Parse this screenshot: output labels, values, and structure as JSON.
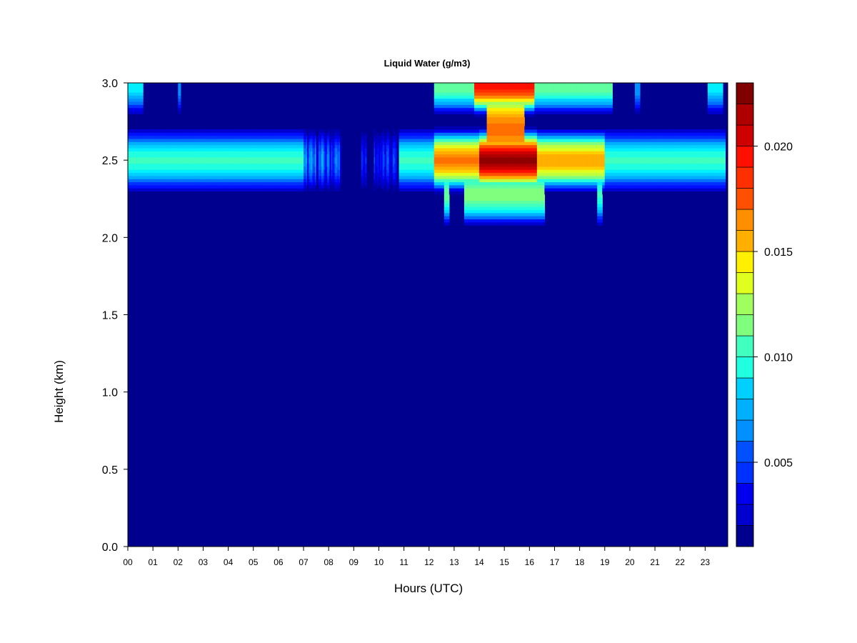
{
  "chart_data": {
    "type": "heatmap",
    "title": "Liquid Water (g/m3)",
    "xlabel": "Hours (UTC)",
    "ylabel": "Height (km)",
    "x_ticks": [
      "00",
      "01",
      "02",
      "03",
      "04",
      "05",
      "06",
      "07",
      "08",
      "09",
      "10",
      "11",
      "12",
      "13",
      "14",
      "15",
      "16",
      "17",
      "18",
      "19",
      "20",
      "21",
      "22",
      "23"
    ],
    "xlim": [
      0,
      23.9
    ],
    "y_ticks": [
      "0.0",
      "0.5",
      "1.0",
      "1.5",
      "2.0",
      "2.5",
      "3.0"
    ],
    "ylim": [
      0,
      3.0
    ],
    "colorbar": {
      "range": [
        0.001,
        0.023
      ],
      "levels": 22,
      "tick_values": [
        0.005,
        0.01,
        0.015,
        0.02
      ],
      "tick_labels": [
        "0.005",
        "0.010",
        "0.015",
        "0.020"
      ],
      "colors": [
        "#00008F",
        "#0000AF",
        "#0000CF",
        "#0000EF",
        "#0010FF",
        "#0030FF",
        "#0050FF",
        "#0070FF",
        "#0090FF",
        "#00B0FF",
        "#00D0FF",
        "#00F0FF",
        "#20FFDF",
        "#40FFBF",
        "#60FF9F",
        "#80FF7F",
        "#A0FF5F",
        "#C0FF3F",
        "#E0FF1F",
        "#FFEF00",
        "#FFCF00",
        "#FFAF00",
        "#FF8F00",
        "#FF6F00",
        "#FF4F00",
        "#FF2F00",
        "#FF0F00",
        "#EF0000",
        "#CF0000",
        "#AF0000",
        "#8F0000",
        "#800000"
      ]
    },
    "background_value": 0.001,
    "cloud_layers": [
      {
        "height_center": 2.5,
        "height_halfwidth": 0.22,
        "segments": [
          {
            "x": [
              0.0,
              7.0
            ],
            "peak": 0.01
          },
          {
            "x": [
              7.0,
              8.5
            ],
            "peak": 0.008,
            "streaky": true
          },
          {
            "x": [
              9.3,
              9.5
            ],
            "peak": 0.006,
            "streaky": true
          },
          {
            "x": [
              9.8,
              10.7
            ],
            "peak": 0.006,
            "streaky": true
          },
          {
            "x": [
              10.8,
              12.2
            ],
            "peak": 0.01
          },
          {
            "x": [
              12.2,
              14.0
            ],
            "peak": 0.017
          },
          {
            "x": [
              14.0,
              16.3
            ],
            "peak": 0.022
          },
          {
            "x": [
              16.3,
              19.0
            ],
            "peak": 0.016
          },
          {
            "x": [
              19.0,
              23.8
            ],
            "peak": 0.01
          }
        ]
      },
      {
        "height_center": 2.98,
        "height_halfwidth": 0.2,
        "segments": [
          {
            "x": [
              0.0,
              0.6
            ],
            "peak": 0.009
          },
          {
            "x": [
              2.0,
              2.1
            ],
            "peak": 0.007
          },
          {
            "x": [
              12.2,
              13.8
            ],
            "peak": 0.011
          },
          {
            "x": [
              13.8,
              16.2
            ],
            "peak": 0.019
          },
          {
            "x": [
              16.2,
              19.3
            ],
            "peak": 0.011
          },
          {
            "x": [
              20.2,
              20.4
            ],
            "peak": 0.007
          },
          {
            "x": [
              23.1,
              23.7
            ],
            "peak": 0.009
          }
        ]
      },
      {
        "height_center": 2.28,
        "height_halfwidth": 0.22,
        "segments": [
          {
            "x": [
              12.6,
              12.8
            ],
            "peak": 0.011
          },
          {
            "x": [
              13.4,
              16.6
            ],
            "peak": 0.012
          },
          {
            "x": [
              18.7,
              18.9
            ],
            "peak": 0.01
          }
        ]
      },
      {
        "height_center": 2.7,
        "height_halfwidth": 0.35,
        "segments": [
          {
            "x": [
              14.3,
              15.8
            ],
            "peak": 0.017
          }
        ]
      }
    ]
  }
}
